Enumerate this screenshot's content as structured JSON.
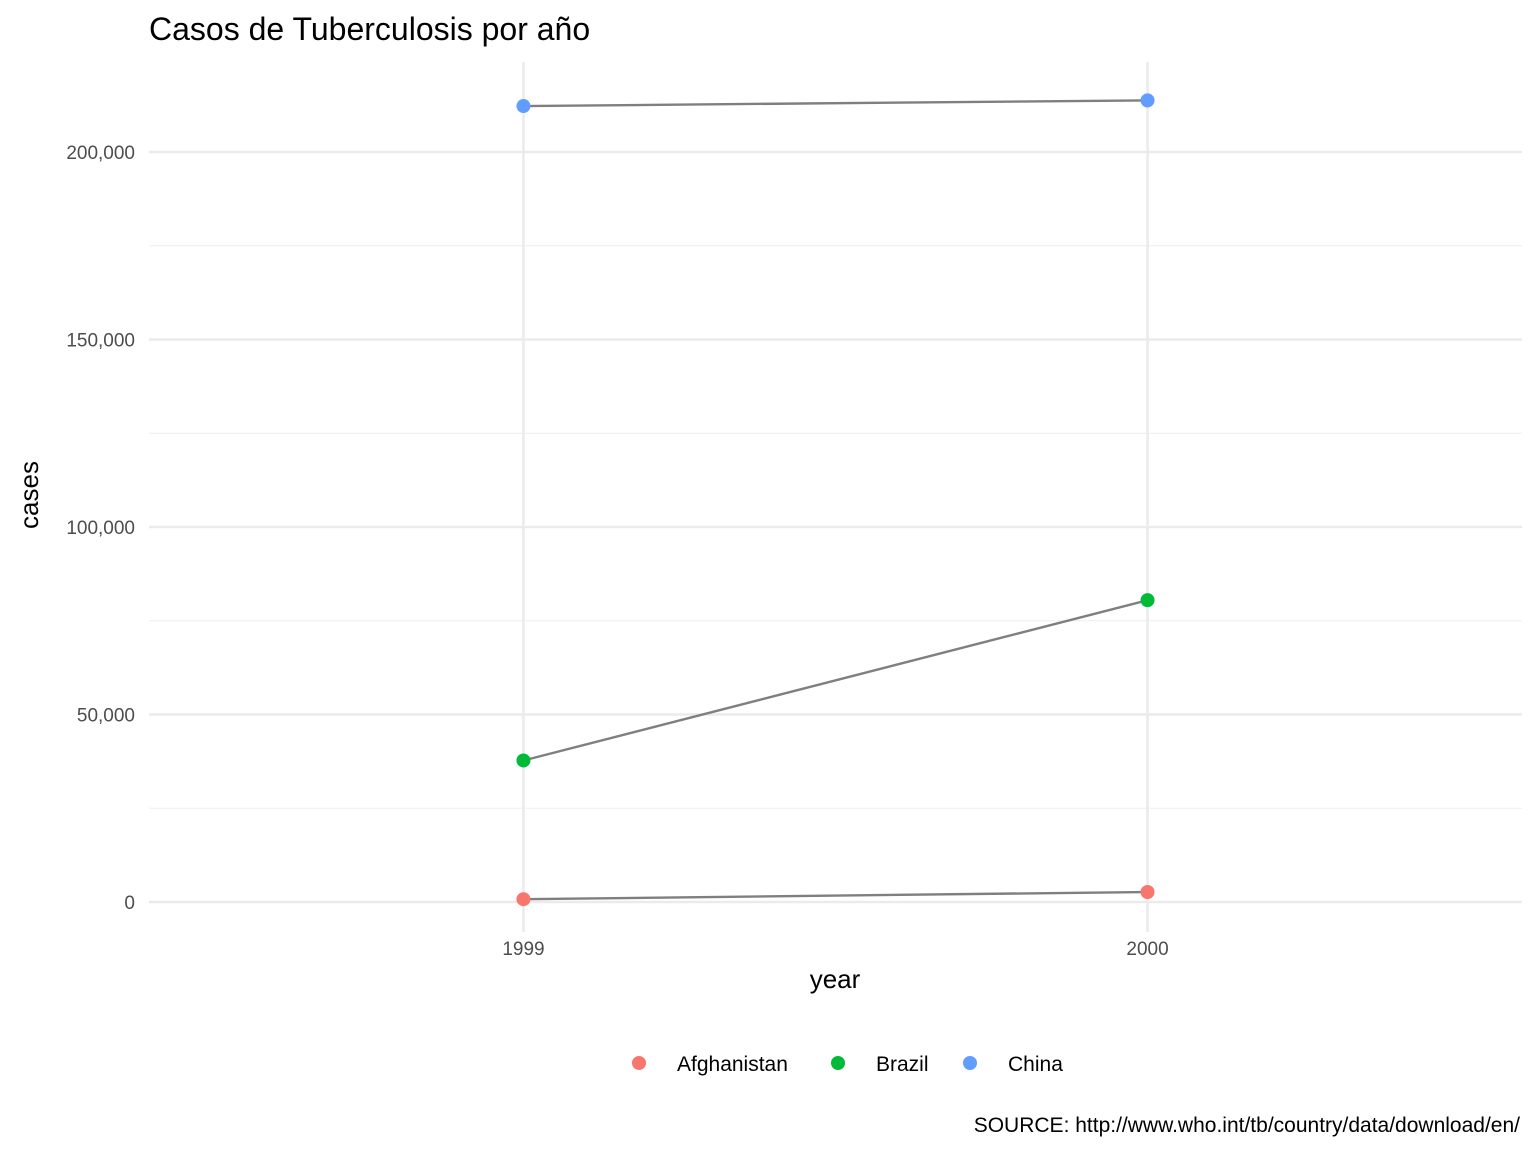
{
  "chart_data": {
    "type": "line",
    "title": "Casos de Tuberculosis por año",
    "xlabel": "year",
    "ylabel": "cases",
    "x": [
      1999,
      2000
    ],
    "x_tick_labels": [
      "1999",
      "2000"
    ],
    "ylim": [
      -8000,
      224000
    ],
    "y_ticks": [
      0,
      50000,
      100000,
      150000,
      200000
    ],
    "y_tick_labels": [
      "0",
      "50,000",
      "100,000",
      "150,000",
      "200,000"
    ],
    "grid": true,
    "legend_position": "bottom",
    "line_color": "#7f7f7f",
    "series": [
      {
        "name": "Afghanistan",
        "color": "#F8766D",
        "values": [
          745,
          2666
        ]
      },
      {
        "name": "Brazil",
        "color": "#00BA38",
        "values": [
          37737,
          80488
        ]
      },
      {
        "name": "China",
        "color": "#619CFF",
        "values": [
          212258,
          213766
        ]
      }
    ],
    "caption": "SOURCE: http://www.who.int/tb/country/data/download/en/"
  }
}
